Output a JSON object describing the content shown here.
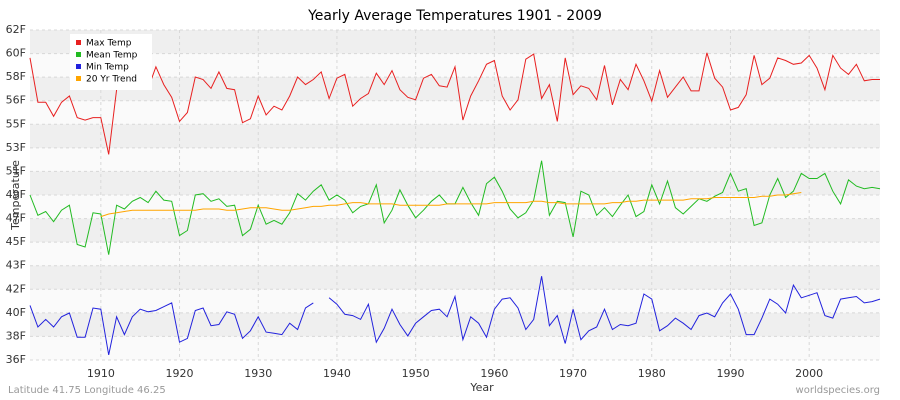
{
  "chart_data": {
    "type": "line",
    "title": "Yearly Average Temperatures 1901 - 2009",
    "x_label": "Year",
    "y_label": "Temperature",
    "footer_left": "Latitude 41.75 Longitude 46.25",
    "footer_right": "worldspecies.org",
    "legend": "upper left",
    "grid": true,
    "xlim": [
      1901,
      2009
    ],
    "xticks": [
      1910,
      1920,
      1930,
      1940,
      1950,
      1960,
      1970,
      1980,
      1990,
      2000
    ],
    "ylim": [
      36,
      62
    ],
    "yticks": [
      {
        "value": 36,
        "label": "36F"
      },
      {
        "value": 37.86,
        "label": "38F"
      },
      {
        "value": 39.71,
        "label": "40F"
      },
      {
        "value": 41.57,
        "label": "42F"
      },
      {
        "value": 43.43,
        "label": "43F"
      },
      {
        "value": 45.29,
        "label": "45F"
      },
      {
        "value": 47.14,
        "label": "47F"
      },
      {
        "value": 49,
        "label": "49F"
      },
      {
        "value": 50.86,
        "label": "51F"
      },
      {
        "value": 52.71,
        "label": "53F"
      },
      {
        "value": 54.57,
        "label": "55F"
      },
      {
        "value": 56.43,
        "label": "56F"
      },
      {
        "value": 58.29,
        "label": "58F"
      },
      {
        "value": 60.14,
        "label": "60F"
      },
      {
        "value": 62,
        "label": "62F"
      }
    ],
    "x": [
      1901,
      1902,
      1903,
      1904,
      1905,
      1906,
      1907,
      1908,
      1909,
      1910,
      1911,
      1912,
      1913,
      1914,
      1915,
      1916,
      1917,
      1918,
      1919,
      1920,
      1921,
      1922,
      1923,
      1924,
      1925,
      1926,
      1927,
      1928,
      1929,
      1930,
      1931,
      1932,
      1933,
      1934,
      1935,
      1936,
      1937,
      1938,
      1939,
      1940,
      1941,
      1942,
      1943,
      1944,
      1945,
      1946,
      1947,
      1948,
      1949,
      1950,
      1951,
      1952,
      1953,
      1954,
      1955,
      1956,
      1957,
      1958,
      1959,
      1960,
      1961,
      1962,
      1963,
      1964,
      1965,
      1966,
      1967,
      1968,
      1969,
      1970,
      1971,
      1972,
      1973,
      1974,
      1975,
      1976,
      1977,
      1978,
      1979,
      1980,
      1981,
      1982,
      1983,
      1984,
      1985,
      1986,
      1987,
      1988,
      1989,
      1990,
      1991,
      1992,
      1993,
      1994,
      1995,
      1996,
      1997,
      1998,
      1999,
      2000,
      2001,
      2002,
      2003,
      2004,
      2005,
      2006,
      2007,
      2008,
      2009
    ],
    "series": [
      {
        "name": "Max Temp",
        "color": "#e82020",
        "values": [
          59.8,
          56.3,
          56.3,
          55.2,
          56.3,
          56.8,
          55.1,
          54.9,
          55.1,
          55.1,
          52.2,
          57.3,
          57.5,
          57.6,
          57.9,
          57.4,
          59.1,
          57.7,
          56.7,
          54.8,
          55.5,
          58.3,
          58.1,
          57.4,
          58.7,
          57.4,
          57.3,
          54.7,
          55.0,
          56.8,
          55.3,
          56.0,
          55.7,
          56.8,
          58.3,
          57.7,
          58.1,
          58.7,
          56.6,
          58.2,
          58.5,
          56.0,
          56.6,
          57.0,
          58.6,
          57.7,
          58.8,
          57.3,
          56.7,
          56.5,
          58.2,
          58.5,
          57.6,
          57.5,
          59.1,
          54.9,
          56.8,
          58.0,
          59.3,
          59.6,
          56.8,
          55.7,
          56.5,
          59.7,
          60.1,
          56.6,
          57.7,
          54.8,
          59.8,
          56.9,
          57.6,
          57.4,
          56.5,
          59.2,
          56.1,
          58.1,
          57.3,
          59.3,
          58.0,
          56.4,
          58.8,
          56.7,
          57.5,
          58.3,
          57.2,
          57.2,
          60.2,
          58.2,
          57.5,
          55.7,
          55.9,
          56.9,
          60.0,
          57.7,
          58.2,
          59.8,
          59.6,
          59.3,
          59.4,
          60.0,
          59.0,
          57.3,
          60.0,
          59.0,
          58.5,
          59.3,
          58.0,
          58.1,
          58.1
        ]
      },
      {
        "name": "Mean Temp",
        "color": "#22bb22",
        "values": [
          49.0,
          47.4,
          47.7,
          46.9,
          47.8,
          48.2,
          45.1,
          44.9,
          47.6,
          47.5,
          44.3,
          48.2,
          47.9,
          48.5,
          48.8,
          48.4,
          49.3,
          48.6,
          48.5,
          45.8,
          46.2,
          49.0,
          49.1,
          48.5,
          48.7,
          48.1,
          48.2,
          45.8,
          46.3,
          48.2,
          46.7,
          47.0,
          46.7,
          47.6,
          49.1,
          48.6,
          49.3,
          49.8,
          48.6,
          49.0,
          48.6,
          47.6,
          48.1,
          48.3,
          49.8,
          46.8,
          47.8,
          49.4,
          48.2,
          47.2,
          47.8,
          48.5,
          49.0,
          48.3,
          48.3,
          49.6,
          48.4,
          47.4,
          49.9,
          50.4,
          49.3,
          47.9,
          47.2,
          47.6,
          48.6,
          51.7,
          47.4,
          48.5,
          48.4,
          45.7,
          49.3,
          49.0,
          47.4,
          48.0,
          47.3,
          48.2,
          49.0,
          47.3,
          47.7,
          49.8,
          48.3,
          50.1,
          48.0,
          47.5,
          48.1,
          48.7,
          48.5,
          48.9,
          49.2,
          50.7,
          49.3,
          49.5,
          46.6,
          46.8,
          49.0,
          50.3,
          48.8,
          49.3,
          50.7,
          50.3,
          50.3,
          50.7,
          49.3,
          48.3,
          50.2,
          49.7,
          49.5,
          49.6,
          49.5
        ]
      },
      {
        "name": "Min Temp",
        "color": "#2222dd",
        "values": [
          40.3,
          38.6,
          39.2,
          38.6,
          39.4,
          39.7,
          37.8,
          37.8,
          40.1,
          40.0,
          36.4,
          39.4,
          38.0,
          39.4,
          40.0,
          39.8,
          39.9,
          40.2,
          40.5,
          37.4,
          37.7,
          39.9,
          40.1,
          38.7,
          38.8,
          39.8,
          39.6,
          37.7,
          38.3,
          39.4,
          38.2,
          38.1,
          38.0,
          38.9,
          38.4,
          40.1,
          40.5,
          null,
          40.9,
          40.4,
          39.6,
          39.5,
          39.2,
          40.4,
          37.4,
          38.5,
          40.0,
          38.8,
          37.9,
          38.9,
          39.4,
          39.9,
          40.0,
          39.4,
          41.0,
          37.6,
          39.4,
          38.9,
          37.8,
          40.0,
          40.8,
          40.9,
          40.1,
          38.4,
          39.2,
          42.6,
          38.7,
          39.5,
          37.3,
          40.0,
          37.6,
          38.3,
          38.6,
          40.0,
          38.4,
          38.8,
          38.7,
          38.9,
          41.2,
          40.8,
          38.3,
          38.7,
          39.3,
          38.9,
          38.4,
          39.5,
          39.7,
          39.4,
          40.5,
          41.2,
          40.0,
          38.0,
          38.0,
          39.3,
          40.8,
          40.4,
          39.7,
          41.9,
          40.9,
          41.1,
          41.3,
          39.5,
          39.3,
          40.8,
          40.9,
          41.0,
          40.5,
          40.6,
          40.8
        ]
      },
      {
        "name": "20 Yr Trend",
        "color": "#ffa500",
        "values": [
          null,
          null,
          null,
          null,
          null,
          null,
          null,
          null,
          null,
          47.3,
          47.5,
          47.6,
          47.7,
          47.8,
          47.8,
          47.8,
          47.8,
          47.8,
          47.8,
          47.8,
          47.8,
          47.8,
          47.9,
          47.9,
          47.9,
          47.8,
          47.8,
          47.9,
          48.0,
          48.0,
          48.0,
          47.9,
          47.8,
          47.8,
          47.9,
          48.0,
          48.1,
          48.1,
          48.2,
          48.2,
          48.3,
          48.4,
          48.4,
          48.3,
          48.3,
          48.3,
          48.3,
          48.2,
          48.2,
          48.2,
          48.2,
          48.2,
          48.2,
          48.3,
          48.3,
          48.3,
          48.3,
          48.3,
          48.3,
          48.4,
          48.4,
          48.4,
          48.4,
          48.4,
          48.5,
          48.5,
          48.4,
          48.4,
          48.3,
          48.3,
          48.3,
          48.3,
          48.3,
          48.3,
          48.4,
          48.4,
          48.5,
          48.5,
          48.6,
          48.6,
          48.6,
          48.6,
          48.6,
          48.6,
          48.7,
          48.7,
          48.7,
          48.8,
          48.8,
          48.8,
          48.8,
          48.8,
          48.8,
          48.9,
          48.9,
          49.0,
          49.0,
          49.1,
          49.2,
          null,
          null,
          null,
          null,
          null,
          null,
          null,
          null,
          null,
          null
        ]
      }
    ]
  }
}
